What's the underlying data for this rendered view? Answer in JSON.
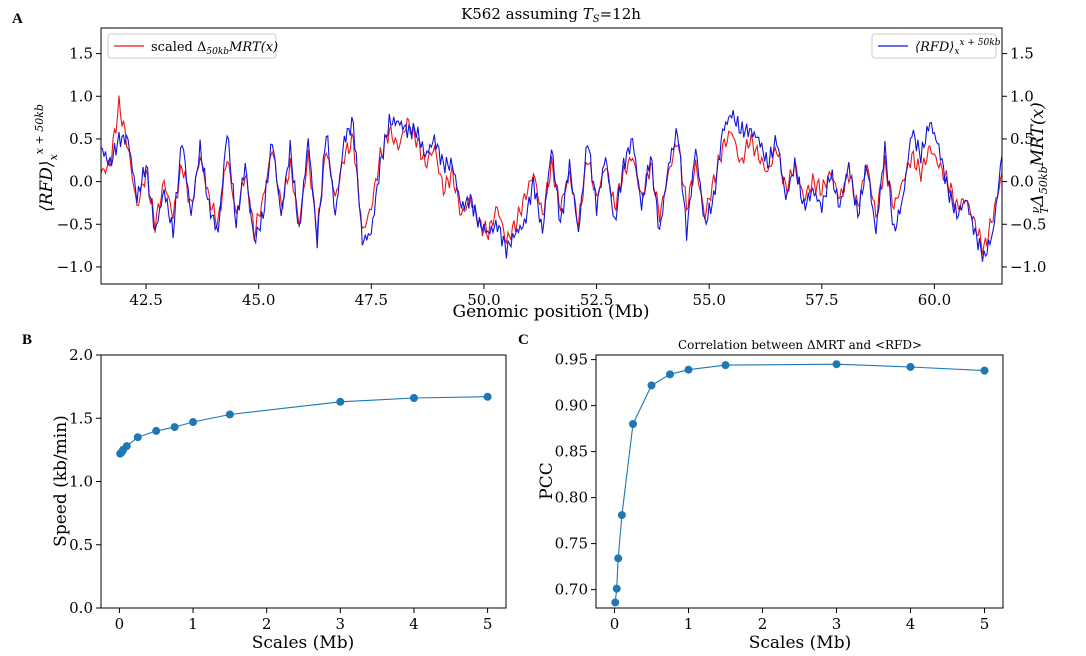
{
  "panel_labels": [
    "A",
    "B",
    "C"
  ],
  "chart_data": [
    {
      "panel": "A",
      "type": "line",
      "title": "K562 assuming T_S=12h",
      "title_display": {
        "prefix": "K562 assuming ",
        "symbol": "T",
        "sub": "S",
        "suffix": "=12h"
      },
      "xlabel": "Genomic position (Mb)",
      "ylabel_left": "⟨RFD⟩_x^{x+50kb}",
      "ylabel_right": "(ν/T) Δ_{50kb} MRT(x)",
      "xlim": [
        41.5,
        61.5
      ],
      "ylim": [
        -1.2,
        1.8
      ],
      "x_ticks": [
        "42.5",
        "45.0",
        "47.5",
        "50.0",
        "52.5",
        "55.0",
        "57.5",
        "60.0"
      ],
      "x_tick_values": [
        42.5,
        45.0,
        47.5,
        50.0,
        52.5,
        55.0,
        57.5,
        60.0
      ],
      "y_ticks": [
        "−1.0",
        "−0.5",
        "0.0",
        "0.5",
        "1.0",
        "1.5"
      ],
      "y_tick_values": [
        -1.0,
        -0.5,
        0.0,
        0.5,
        1.0,
        1.5
      ],
      "legend_left": {
        "text_prefix": "scaled ",
        "symbol": "Δ",
        "sub": "50kb",
        "rest": "MRT(x)",
        "color": "#e8161b",
        "placement": "top-left"
      },
      "legend_right": {
        "text": "⟨RFD⟩",
        "sub": "x",
        "sup": "x + 50kb",
        "color": "#1414d6",
        "placement": "top-right"
      },
      "series": [
        {
          "name": "scaled Δ50kbMRT(x)",
          "color": "#e8161b",
          "x": [
            41.5,
            41.7,
            41.9,
            42.1,
            42.3,
            42.5,
            42.7,
            42.9,
            43.1,
            43.3,
            43.5,
            43.7,
            43.9,
            44.1,
            44.3,
            44.5,
            44.7,
            44.9,
            45.1,
            45.3,
            45.5,
            45.7,
            45.9,
            46.1,
            46.3,
            46.5,
            46.7,
            46.9,
            47.1,
            47.3,
            47.5,
            47.7,
            47.9,
            48.1,
            48.3,
            48.5,
            48.7,
            48.9,
            49.1,
            49.3,
            49.5,
            49.7,
            49.9,
            50.1,
            50.3,
            50.5,
            50.7,
            50.9,
            51.1,
            51.3,
            51.5,
            51.7,
            51.9,
            52.1,
            52.3,
            52.5,
            52.7,
            52.9,
            53.1,
            53.3,
            53.5,
            53.7,
            53.9,
            54.1,
            54.3,
            54.5,
            54.7,
            54.9,
            55.1,
            55.3,
            55.5,
            55.7,
            55.9,
            56.1,
            56.3,
            56.5,
            56.7,
            56.9,
            57.1,
            57.3,
            57.5,
            57.7,
            57.9,
            58.1,
            58.3,
            58.5,
            58.7,
            58.9,
            59.1,
            59.3,
            59.5,
            59.7,
            59.9,
            60.1,
            60.3,
            60.5,
            60.7,
            60.9,
            61.1,
            61.3,
            61.5
          ],
          "values": [
            0.1,
            0.2,
            0.9,
            0.4,
            -0.3,
            0.1,
            -0.5,
            0.0,
            -0.4,
            0.2,
            -0.3,
            0.3,
            -0.2,
            -0.5,
            0.3,
            -0.4,
            0.1,
            -0.6,
            -0.2,
            0.4,
            -0.3,
            0.2,
            -0.5,
            0.3,
            -0.6,
            0.4,
            -0.2,
            0.3,
            0.5,
            -0.6,
            -0.3,
            0.3,
            0.6,
            0.4,
            0.7,
            0.5,
            0.2,
            0.4,
            -0.1,
            0.1,
            -0.4,
            -0.2,
            -0.5,
            -0.6,
            -0.3,
            -0.7,
            -0.5,
            -0.2,
            0.1,
            -0.4,
            0.2,
            -0.3,
            0.1,
            -0.5,
            0.3,
            -0.2,
            0.2,
            -0.3,
            0.1,
            0.3,
            -0.2,
            0.2,
            -0.4,
            0.1,
            0.5,
            -0.3,
            0.2,
            -0.4,
            0.0,
            0.4,
            0.6,
            0.2,
            0.5,
            0.3,
            0.1,
            0.4,
            -0.1,
            0.2,
            -0.2,
            0.0,
            -0.1,
            0.1,
            -0.2,
            0.1,
            -0.3,
            0.2,
            -0.4,
            0.2,
            -0.3,
            0.0,
            0.3,
            0.1,
            0.4,
            0.2,
            0.0,
            -0.3,
            -0.2,
            -0.5,
            -0.8,
            -0.4,
            0.1
          ]
        },
        {
          "name": "⟨RFD⟩x^x+50kb",
          "color": "#1414d6",
          "x": [
            41.5,
            41.7,
            41.9,
            42.1,
            42.3,
            42.5,
            42.7,
            42.9,
            43.1,
            43.3,
            43.5,
            43.7,
            43.9,
            44.1,
            44.3,
            44.5,
            44.7,
            44.9,
            45.1,
            45.3,
            45.5,
            45.7,
            45.9,
            46.1,
            46.3,
            46.5,
            46.7,
            46.9,
            47.1,
            47.3,
            47.5,
            47.7,
            47.9,
            48.1,
            48.3,
            48.5,
            48.7,
            48.9,
            49.1,
            49.3,
            49.5,
            49.7,
            49.9,
            50.1,
            50.3,
            50.5,
            50.7,
            50.9,
            51.1,
            51.3,
            51.5,
            51.7,
            51.9,
            52.1,
            52.3,
            52.5,
            52.7,
            52.9,
            53.1,
            53.3,
            53.5,
            53.7,
            53.9,
            54.1,
            54.3,
            54.5,
            54.7,
            54.9,
            55.1,
            55.3,
            55.5,
            55.7,
            55.9,
            56.1,
            56.3,
            56.5,
            56.7,
            56.9,
            57.1,
            57.3,
            57.5,
            57.7,
            57.9,
            58.1,
            58.3,
            58.5,
            58.7,
            58.9,
            59.1,
            59.3,
            59.5,
            59.7,
            59.9,
            60.1,
            60.3,
            60.5,
            60.7,
            60.9,
            61.1,
            61.3,
            61.5
          ],
          "values": [
            0.4,
            0.2,
            0.5,
            0.5,
            -0.2,
            0.2,
            -0.6,
            -0.1,
            -0.6,
            0.5,
            -0.4,
            0.4,
            -0.3,
            -0.6,
            0.6,
            -0.5,
            0.2,
            -0.7,
            -0.4,
            0.5,
            -0.4,
            0.4,
            -0.6,
            0.5,
            -0.7,
            0.6,
            -0.4,
            0.5,
            0.7,
            -0.7,
            -0.6,
            0.2,
            0.7,
            0.7,
            0.6,
            0.6,
            0.3,
            0.5,
            0.2,
            0.2,
            -0.3,
            -0.2,
            -0.5,
            -0.6,
            -0.5,
            -0.8,
            -0.6,
            -0.5,
            0.0,
            -0.6,
            0.4,
            -0.5,
            0.2,
            -0.6,
            0.5,
            -0.3,
            0.3,
            -0.5,
            0.2,
            0.5,
            -0.3,
            0.3,
            -0.6,
            0.2,
            0.6,
            -0.6,
            0.4,
            -0.5,
            -0.2,
            0.6,
            0.8,
            0.6,
            0.6,
            0.5,
            0.2,
            0.5,
            -0.2,
            0.2,
            -0.3,
            -0.1,
            -0.3,
            0.1,
            -0.3,
            0.2,
            -0.4,
            0.2,
            -0.6,
            0.4,
            -0.6,
            -0.2,
            0.6,
            0.3,
            0.7,
            0.4,
            -0.1,
            -0.4,
            -0.2,
            -0.6,
            -0.9,
            -0.6,
            0.3
          ]
        }
      ]
    },
    {
      "panel": "B",
      "type": "line",
      "xlabel": "Scales (Mb)",
      "ylabel": "Speed (kb/min)",
      "xlim": [
        -0.25,
        5.25
      ],
      "ylim": [
        0.0,
        2.0
      ],
      "x_ticks": [
        "0",
        "1",
        "2",
        "3",
        "4",
        "5"
      ],
      "x_tick_values": [
        0,
        1,
        2,
        3,
        4,
        5
      ],
      "y_ticks": [
        "0.0",
        "0.5",
        "1.0",
        "1.5",
        "2.0"
      ],
      "y_tick_values": [
        0.0,
        0.5,
        1.0,
        1.5,
        2.0
      ],
      "color": "#1f77b4",
      "x": [
        0.01,
        0.03,
        0.05,
        0.1,
        0.25,
        0.5,
        0.75,
        1.0,
        1.5,
        3.0,
        4.0,
        5.0
      ],
      "values": [
        1.22,
        1.23,
        1.25,
        1.28,
        1.35,
        1.4,
        1.43,
        1.47,
        1.53,
        1.63,
        1.66,
        1.67
      ]
    },
    {
      "panel": "C",
      "type": "line",
      "title": "Correlation between ΔMRT and <RFD>",
      "xlabel": "Scales (Mb)",
      "ylabel": "PCC",
      "xlim": [
        -0.25,
        5.25
      ],
      "ylim": [
        0.68,
        0.955
      ],
      "x_ticks": [
        "0",
        "1",
        "2",
        "3",
        "4",
        "5"
      ],
      "x_tick_values": [
        0,
        1,
        2,
        3,
        4,
        5
      ],
      "y_ticks": [
        "0.70",
        "0.75",
        "0.80",
        "0.85",
        "0.90",
        "0.95"
      ],
      "y_tick_values": [
        0.7,
        0.75,
        0.8,
        0.85,
        0.9,
        0.95
      ],
      "color": "#1f77b4",
      "x": [
        0.01,
        0.03,
        0.05,
        0.1,
        0.25,
        0.5,
        0.75,
        1.0,
        1.5,
        3.0,
        4.0,
        5.0
      ],
      "values": [
        0.686,
        0.701,
        0.734,
        0.781,
        0.88,
        0.922,
        0.934,
        0.939,
        0.944,
        0.945,
        0.942,
        0.938
      ]
    }
  ]
}
